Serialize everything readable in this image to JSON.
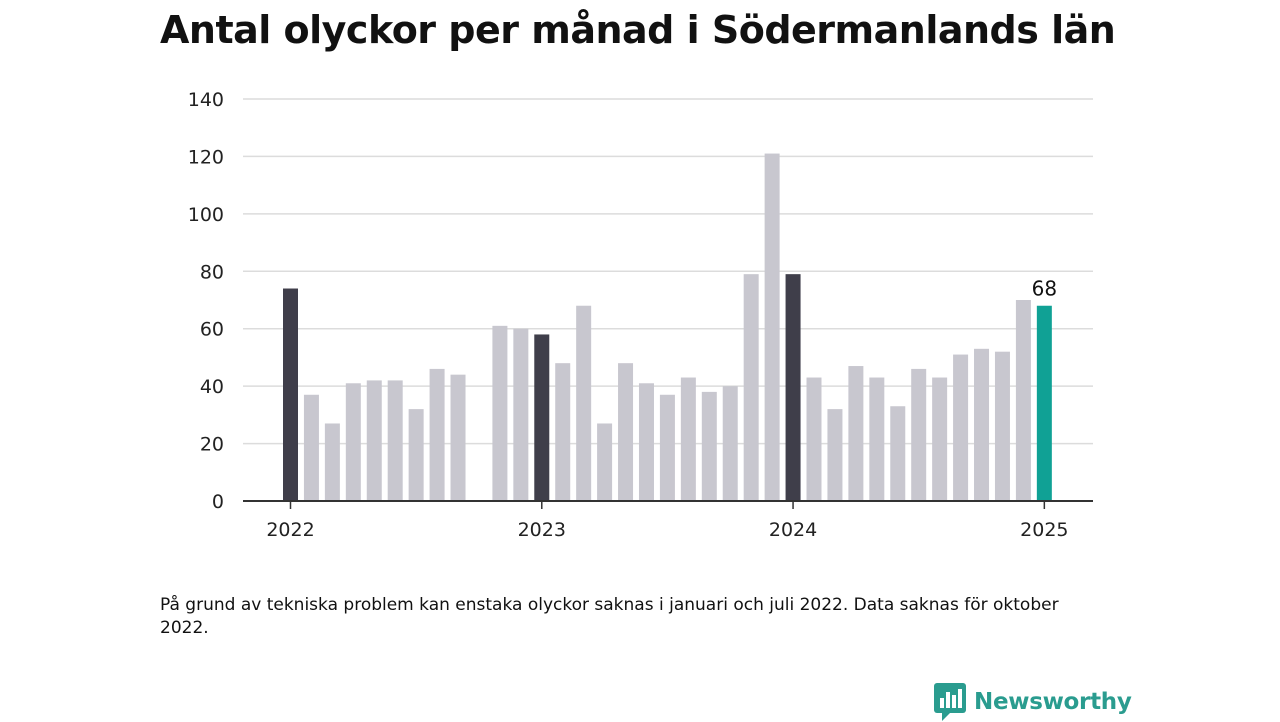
{
  "title": "Antal olyckor per månad i Södermanlands län",
  "note": "På grund av tekniska problem kan enstaka olyckor saknas i januari och juli 2022. Data saknas för oktober 2022.",
  "brand": {
    "name": "Newsworthy",
    "color": "#2a9c8f",
    "icon": "newsworthy-logo-icon"
  },
  "colors": {
    "regular": "#c8c7cf",
    "january": "#3f3e4a",
    "latest": "#10a195",
    "grid": "#dcdcdc",
    "axis": "#333333"
  },
  "chart_data": {
    "type": "bar",
    "title": "Antal olyckor per månad i Södermanlands län",
    "xlabel": "",
    "ylabel": "",
    "ylim": [
      0,
      140
    ],
    "yticks": [
      0,
      20,
      40,
      60,
      80,
      100,
      120,
      140
    ],
    "grid": true,
    "legend": "none",
    "x_tick_labels": [
      {
        "label": "2022",
        "month": "2022-01"
      },
      {
        "label": "2023",
        "month": "2023-01"
      },
      {
        "label": "2024",
        "month": "2024-01"
      },
      {
        "label": "2025",
        "month": "2025-01"
      }
    ],
    "categories": [
      "2022-01",
      "2022-02",
      "2022-03",
      "2022-04",
      "2022-05",
      "2022-06",
      "2022-07",
      "2022-08",
      "2022-09",
      "2022-10",
      "2022-11",
      "2022-12",
      "2023-01",
      "2023-02",
      "2023-03",
      "2023-04",
      "2023-05",
      "2023-06",
      "2023-07",
      "2023-08",
      "2023-09",
      "2023-10",
      "2023-11",
      "2023-12",
      "2024-01",
      "2024-02",
      "2024-03",
      "2024-04",
      "2024-05",
      "2024-06",
      "2024-07",
      "2024-08",
      "2024-09",
      "2024-10",
      "2024-11",
      "2024-12",
      "2025-01"
    ],
    "values": [
      74,
      37,
      27,
      41,
      42,
      42,
      32,
      46,
      44,
      null,
      61,
      60,
      58,
      48,
      68,
      27,
      48,
      41,
      37,
      43,
      38,
      40,
      79,
      121,
      79,
      43,
      32,
      47,
      43,
      33,
      46,
      43,
      51,
      53,
      52,
      70,
      68
    ],
    "highlight": {
      "category": "2025-01",
      "label": "68"
    }
  }
}
